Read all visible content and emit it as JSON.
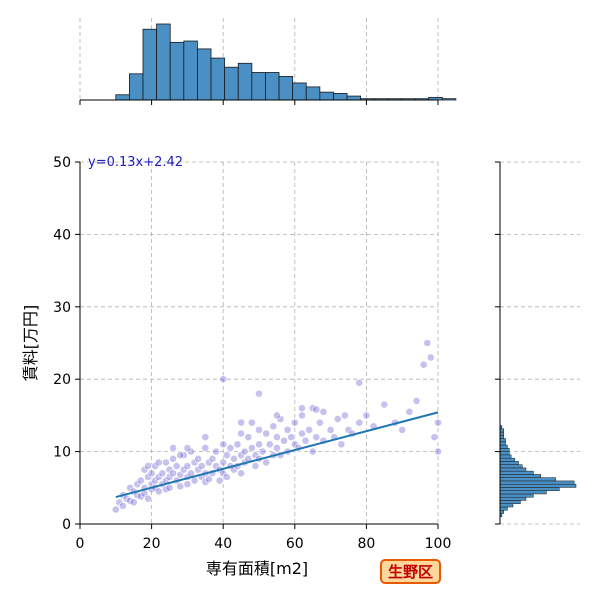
{
  "chart_data": {
    "type": "scatter",
    "xlabel": "専有面積[m2]",
    "ylabel": "賃料[万円]",
    "xlim": [
      0,
      100
    ],
    "ylim": [
      0,
      50
    ],
    "xticks": [
      "0",
      "20",
      "40",
      "60",
      "80",
      "100"
    ],
    "yticks": [
      "0",
      "10",
      "20",
      "30",
      "40",
      "50"
    ],
    "grid": true,
    "equation": "y=0.13x+2.42",
    "regression": {
      "slope": 0.13,
      "intercept": 2.42,
      "x_range": [
        10,
        100
      ]
    },
    "region_badge": "生野区",
    "colors": {
      "points": "#5a4fcf",
      "fit_line": "#1f77b4",
      "hist": "#4a90c4",
      "badge_text": "#c00000"
    },
    "top_histogram": {
      "bin_start": 10,
      "bin_width": 3.8,
      "counts": [
        4,
        20,
        54,
        58,
        44,
        45,
        39,
        32,
        25,
        28,
        21,
        21,
        18,
        13,
        10,
        6,
        5,
        3,
        1,
        1,
        1,
        1,
        1,
        2,
        1
      ]
    },
    "right_histogram": {
      "bin_start": 1.0,
      "bin_width": 0.45,
      "counts": [
        1,
        2,
        4,
        7,
        11,
        14,
        18,
        25,
        32,
        41,
        40,
        30,
        22,
        18,
        14,
        12,
        10,
        8,
        6,
        5,
        5,
        4,
        3,
        3,
        2,
        2,
        2,
        1
      ]
    },
    "points": [
      [
        10,
        2.0
      ],
      [
        11,
        3.0
      ],
      [
        12,
        4.0
      ],
      [
        12,
        2.5
      ],
      [
        13,
        3.5
      ],
      [
        14,
        5.0
      ],
      [
        14,
        3.2
      ],
      [
        15,
        4.5
      ],
      [
        15,
        3.0
      ],
      [
        16,
        5.5
      ],
      [
        16,
        4.0
      ],
      [
        17,
        6.0
      ],
      [
        17,
        3.8
      ],
      [
        18,
        5.0
      ],
      [
        18,
        7.5
      ],
      [
        18,
        4.2
      ],
      [
        19,
        6.5
      ],
      [
        19,
        3.5
      ],
      [
        20,
        5.5
      ],
      [
        20,
        7.0
      ],
      [
        20,
        4.8
      ],
      [
        21,
        6.0
      ],
      [
        21,
        8.0
      ],
      [
        21,
        5.0
      ],
      [
        22,
        6.5
      ],
      [
        22,
        4.5
      ],
      [
        23,
        7.0
      ],
      [
        23,
        5.5
      ],
      [
        24,
        6.0
      ],
      [
        24,
        8.5
      ],
      [
        24,
        4.8
      ],
      [
        25,
        6.5
      ],
      [
        25,
        7.5
      ],
      [
        25,
        5.0
      ],
      [
        26,
        7.0
      ],
      [
        26,
        9.0
      ],
      [
        27,
        6.0
      ],
      [
        27,
        8.0
      ],
      [
        28,
        6.8
      ],
      [
        28,
        5.2
      ],
      [
        29,
        7.5
      ],
      [
        29,
        9.5
      ],
      [
        30,
        6.5
      ],
      [
        30,
        8.0
      ],
      [
        30,
        5.5
      ],
      [
        31,
        7.0
      ],
      [
        31,
        10.0
      ],
      [
        32,
        6.0
      ],
      [
        32,
        8.5
      ],
      [
        33,
        7.5
      ],
      [
        33,
        9.0
      ],
      [
        34,
        6.5
      ],
      [
        34,
        8.0
      ],
      [
        35,
        7.0
      ],
      [
        35,
        10.5
      ],
      [
        35,
        5.8
      ],
      [
        36,
        8.5
      ],
      [
        36,
        6.2
      ],
      [
        37,
        9.0
      ],
      [
        37,
        7.0
      ],
      [
        38,
        8.0
      ],
      [
        38,
        10.0
      ],
      [
        39,
        7.5
      ],
      [
        39,
        6.0
      ],
      [
        40,
        8.5
      ],
      [
        40,
        11.0
      ],
      [
        40,
        7.0
      ],
      [
        41,
        9.5
      ],
      [
        41,
        6.5
      ],
      [
        42,
        8.0
      ],
      [
        42,
        10.5
      ],
      [
        43,
        9.0
      ],
      [
        43,
        7.5
      ],
      [
        44,
        11.0
      ],
      [
        44,
        8.0
      ],
      [
        45,
        9.5
      ],
      [
        45,
        12.5
      ],
      [
        45,
        7.0
      ],
      [
        46,
        10.0
      ],
      [
        46,
        8.5
      ],
      [
        47,
        12.0
      ],
      [
        47,
        9.0
      ],
      [
        48,
        10.5
      ],
      [
        48,
        14.0
      ],
      [
        49,
        9.5
      ],
      [
        49,
        8.0
      ],
      [
        50,
        11.0
      ],
      [
        50,
        13.0
      ],
      [
        50,
        9.0
      ],
      [
        51,
        10.0
      ],
      [
        52,
        12.5
      ],
      [
        52,
        8.5
      ],
      [
        53,
        11.0
      ],
      [
        54,
        9.5
      ],
      [
        54,
        13.5
      ],
      [
        55,
        10.5
      ],
      [
        55,
        12.0
      ],
      [
        56,
        14.5
      ],
      [
        56,
        9.5
      ],
      [
        57,
        11.5
      ],
      [
        58,
        10.0
      ],
      [
        58,
        13.0
      ],
      [
        59,
        12.0
      ],
      [
        60,
        11.0
      ],
      [
        60,
        14.0
      ],
      [
        61,
        10.5
      ],
      [
        62,
        12.5
      ],
      [
        62,
        15.0
      ],
      [
        63,
        11.5
      ],
      [
        64,
        13.0
      ],
      [
        65,
        10.0
      ],
      [
        65,
        16.0
      ],
      [
        66,
        12.0
      ],
      [
        67,
        14.0
      ],
      [
        68,
        11.5
      ],
      [
        68,
        15.5
      ],
      [
        70,
        13.0
      ],
      [
        71,
        12.0
      ],
      [
        72,
        14.5
      ],
      [
        73,
        11.0
      ],
      [
        74,
        15.0
      ],
      [
        75,
        13.0
      ],
      [
        76,
        12.5
      ],
      [
        78,
        14.0
      ],
      [
        78,
        19.5
      ],
      [
        80,
        15.0
      ],
      [
        82,
        13.5
      ],
      [
        85,
        16.5
      ],
      [
        88,
        14.0
      ],
      [
        90,
        13.0
      ],
      [
        92,
        15.5
      ],
      [
        94,
        17.0
      ],
      [
        96,
        22.0
      ],
      [
        97,
        25.0
      ],
      [
        98,
        23.0
      ],
      [
        99,
        12.0
      ],
      [
        100,
        10.0
      ],
      [
        100,
        14.0
      ],
      [
        40,
        20.0
      ],
      [
        50,
        18.0
      ],
      [
        45,
        14.0
      ],
      [
        35,
        12.0
      ],
      [
        30,
        10.5
      ],
      [
        28,
        9.5
      ],
      [
        26,
        10.5
      ],
      [
        22,
        8.5
      ],
      [
        19,
        8.0
      ],
      [
        55,
        15.0
      ],
      [
        62,
        16.0
      ],
      [
        66,
        15.8
      ]
    ]
  }
}
